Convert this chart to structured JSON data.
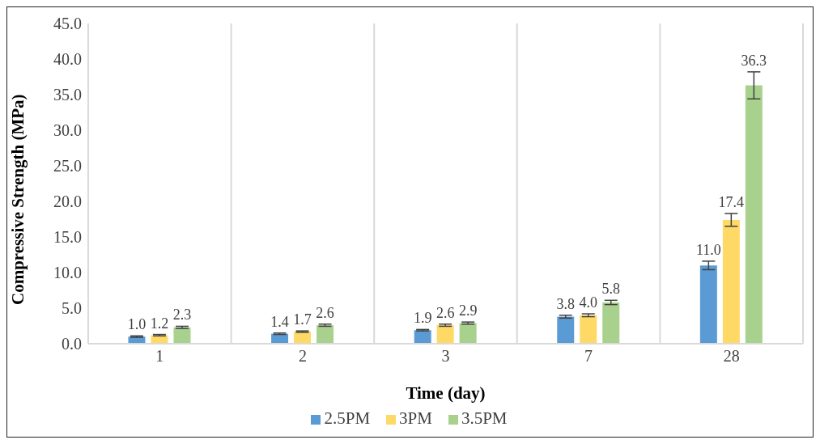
{
  "chart_data": {
    "type": "bar",
    "xlabel": "Time (day)",
    "ylabel": "Compressive Strength (MPa)",
    "categories": [
      "1",
      "2",
      "3",
      "7",
      "28"
    ],
    "series": [
      {
        "name": "2.5PM",
        "color": "#5b9bd5",
        "values": [
          1.0,
          1.4,
          1.9,
          3.8,
          11.0
        ],
        "errors": [
          0.1,
          0.1,
          0.1,
          0.2,
          0.6
        ],
        "value_labels": [
          "1.0",
          "1.4",
          "1.9",
          "3.8",
          "11.0"
        ]
      },
      {
        "name": "3PM",
        "color": "#ffd966",
        "values": [
          1.2,
          1.7,
          2.6,
          4.0,
          17.4
        ],
        "errors": [
          0.1,
          0.1,
          0.15,
          0.2,
          0.9
        ],
        "value_labels": [
          "1.2",
          "1.7",
          "2.6",
          "4.0",
          "17.4"
        ]
      },
      {
        "name": "3.5PM",
        "color": "#a9d18e",
        "values": [
          2.3,
          2.6,
          2.9,
          5.8,
          36.3
        ],
        "errors": [
          0.15,
          0.15,
          0.15,
          0.3,
          1.9
        ],
        "value_labels": [
          "2.3",
          "2.6",
          "2.9",
          "5.8",
          "36.3"
        ]
      }
    ],
    "ylim": [
      0,
      45
    ],
    "yticks": [
      {
        "value": 0,
        "label": "0.0"
      },
      {
        "value": 5,
        "label": "5.0"
      },
      {
        "value": 10,
        "label": "10.0"
      },
      {
        "value": 15,
        "label": "15.0"
      },
      {
        "value": 20,
        "label": "20.0"
      },
      {
        "value": 25,
        "label": "25.0"
      },
      {
        "value": 30,
        "label": "30.0"
      },
      {
        "value": 35,
        "label": "35.0"
      },
      {
        "value": 40,
        "label": "40.0"
      },
      {
        "value": 45,
        "label": "45.0"
      }
    ],
    "grid": "x",
    "legend": "bottom"
  }
}
